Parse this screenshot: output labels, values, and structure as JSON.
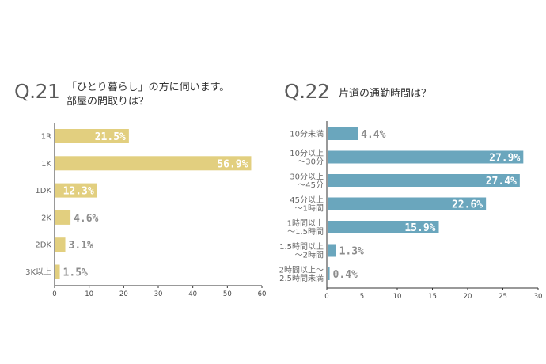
{
  "chart_data": [
    {
      "type": "bar",
      "orientation": "horizontal",
      "question_number": "Q.21",
      "title_lines": [
        "「ひとり暮らし」の方に伺います。",
        "部屋の間取りは？"
      ],
      "categories": [
        [
          "1R"
        ],
        [
          "1K"
        ],
        [
          "1DK"
        ],
        [
          "2K"
        ],
        [
          "2DK"
        ],
        [
          "3K以上"
        ]
      ],
      "values": [
        21.5,
        56.9,
        12.3,
        4.6,
        3.1,
        1.5
      ],
      "value_labels": [
        "21.5%",
        "56.9%",
        "12.3%",
        "4.6%",
        "3.1%",
        "1.5%"
      ],
      "xlim": [
        0,
        60
      ],
      "xticks": [
        "0",
        "10",
        "20",
        "30",
        "40",
        "50",
        "60"
      ],
      "grid": false,
      "colors": {
        "bar": "#e2cf7f",
        "label_outside": "#8c8c8c",
        "label_inside": "#ffffff"
      }
    },
    {
      "type": "bar",
      "orientation": "horizontal",
      "question_number": "Q.22",
      "title_lines": [
        "片道の通勤時間は？"
      ],
      "categories": [
        [
          "10分未満"
        ],
        [
          "10分以上",
          "〜30分"
        ],
        [
          "30分以上",
          "〜45分"
        ],
        [
          "45分以上",
          "〜1時間"
        ],
        [
          "1時間以上",
          "〜1.5時間"
        ],
        [
          "1.5時間以上",
          "〜2時間"
        ],
        [
          "2時間以上〜",
          "2.5時間未満"
        ]
      ],
      "values": [
        4.4,
        27.9,
        27.4,
        22.6,
        15.9,
        1.3,
        0.4
      ],
      "value_labels": [
        "4.4%",
        "27.9%",
        "27.4%",
        "22.6%",
        "15.9%",
        "1.3%",
        "0.4%"
      ],
      "xlim": [
        0,
        30
      ],
      "xticks": [
        "0",
        "5",
        "10",
        "15",
        "20",
        "25",
        "30"
      ],
      "grid": false,
      "colors": {
        "bar": "#6aa6bd",
        "label_outside": "#8c8c8c",
        "label_inside": "#ffffff"
      }
    }
  ]
}
